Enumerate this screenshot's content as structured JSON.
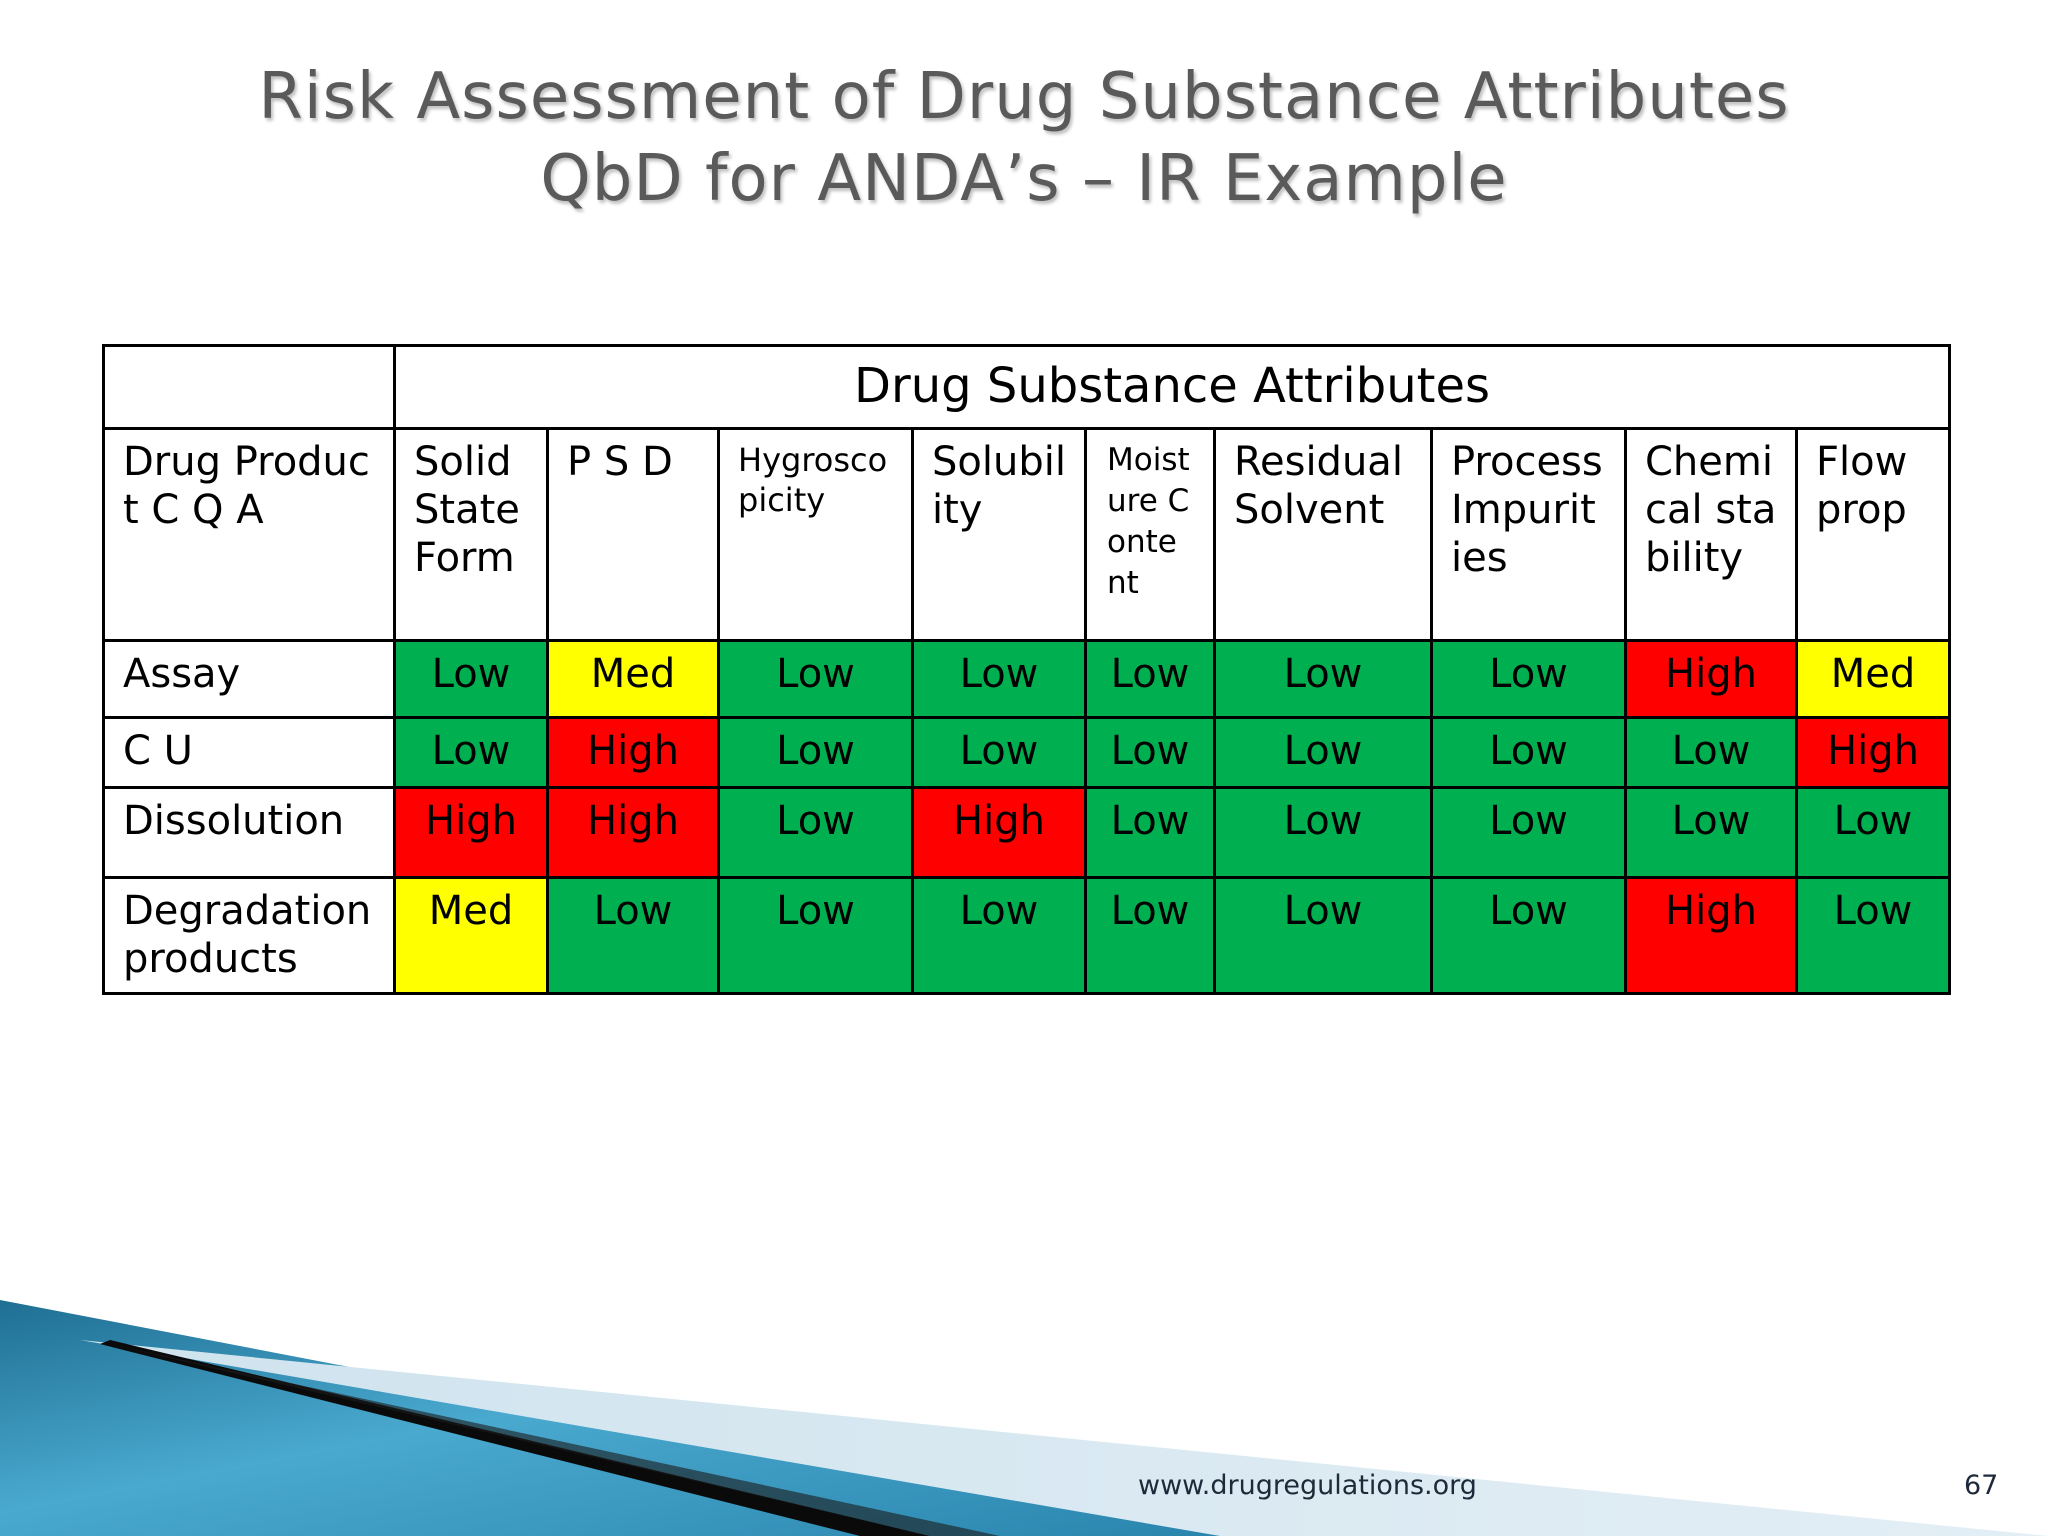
{
  "slide": {
    "title_line1": "Risk Assessment of Drug Substance Attributes",
    "title_line2": "QbD for ANDA’s – IR Example",
    "footer_url": "www.drugregulations.org",
    "page_number": "67"
  },
  "colors": {
    "Low": "#00b050",
    "Med": "#ffff00",
    "High": "#ff0000"
  },
  "table": {
    "group_header": "Drug Substance Attributes",
    "corner_header": "Drug Product C Q A",
    "columns": [
      "Solid State Form",
      "P S D",
      "Hygroscopicity",
      "Solubility",
      "Moisture Content",
      "Residual Solvent",
      "Process Impurities",
      "Chemical stability",
      "Flow prop"
    ],
    "rows": [
      {
        "label": "Assay",
        "values": [
          "Low",
          "Med",
          "Low",
          "Low",
          "Low",
          "Low",
          "Low",
          "High",
          "Med"
        ]
      },
      {
        "label": "C U",
        "values": [
          "Low",
          "High",
          "Low",
          "Low",
          "Low",
          "Low",
          "Low",
          "Low",
          "High"
        ]
      },
      {
        "label": "Dissolution",
        "values": [
          "High",
          "High",
          "Low",
          "High",
          "Low",
          "Low",
          "Low",
          "Low",
          "Low"
        ]
      },
      {
        "label": "Degradation products",
        "values": [
          "Med",
          "Low",
          "Low",
          "Low",
          "Low",
          "Low",
          "Low",
          "High",
          "Low"
        ]
      }
    ]
  }
}
